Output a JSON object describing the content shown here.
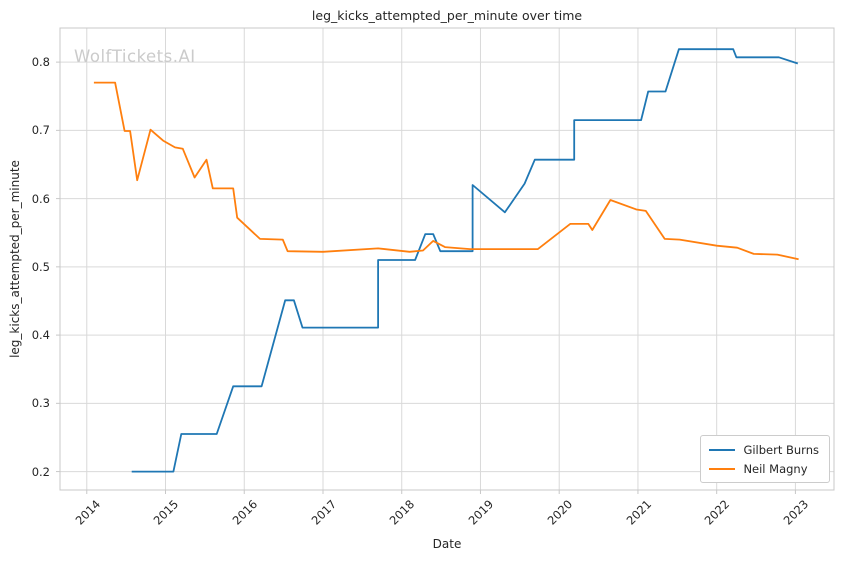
{
  "figure": {
    "title": "leg_kicks_attempted_per_minute over time",
    "watermark": "WolfTickets.AI"
  },
  "colors": {
    "background": "#ffffff",
    "grid": "#d9d9d9",
    "spine": "#c8c8c8",
    "text": "#262626",
    "watermark": "#cbcbcb",
    "series_blue": "#1f77b4",
    "series_orange": "#ff7f0e"
  },
  "chart_data": {
    "type": "line",
    "title": "leg_kicks_attempted_per_minute over time",
    "xlabel": "Date",
    "ylabel": "leg_kicks_attempted_per_minute",
    "xlim": [
      2013.66,
      2023.49
    ],
    "ylim": [
      0.173,
      0.85
    ],
    "x_ticks": [
      2014,
      2015,
      2016,
      2017,
      2018,
      2019,
      2020,
      2021,
      2022,
      2023
    ],
    "x_tick_labels": [
      "2014",
      "2015",
      "2016",
      "2017",
      "2018",
      "2019",
      "2020",
      "2021",
      "2022",
      "2023"
    ],
    "y_ticks": [
      0.2,
      0.3,
      0.4,
      0.5,
      0.6,
      0.7,
      0.8
    ],
    "y_tick_labels": [
      "0.2",
      "0.3",
      "0.4",
      "0.5",
      "0.6",
      "0.7",
      "0.8"
    ],
    "grid": true,
    "legend_position": "lower right",
    "series": [
      {
        "name": "Gilbert Burns",
        "color": "#1f77b4",
        "points": [
          [
            2014.57,
            0.2
          ],
          [
            2015.1,
            0.2
          ],
          [
            2015.2,
            0.255
          ],
          [
            2015.65,
            0.255
          ],
          [
            2015.86,
            0.325
          ],
          [
            2016.22,
            0.325
          ],
          [
            2016.52,
            0.451
          ],
          [
            2016.63,
            0.451
          ],
          [
            2016.74,
            0.411
          ],
          [
            2017.7,
            0.411
          ],
          [
            2017.7,
            0.51
          ],
          [
            2018.17,
            0.51
          ],
          [
            2018.3,
            0.548
          ],
          [
            2018.4,
            0.548
          ],
          [
            2018.49,
            0.523
          ],
          [
            2018.9,
            0.523
          ],
          [
            2018.9,
            0.62
          ],
          [
            2019.31,
            0.58
          ],
          [
            2019.56,
            0.622
          ],
          [
            2019.69,
            0.657
          ],
          [
            2020.19,
            0.657
          ],
          [
            2020.19,
            0.715
          ],
          [
            2021.04,
            0.715
          ],
          [
            2021.13,
            0.757
          ],
          [
            2021.35,
            0.757
          ],
          [
            2021.52,
            0.819
          ],
          [
            2022.21,
            0.819
          ],
          [
            2022.25,
            0.807
          ],
          [
            2022.79,
            0.807
          ],
          [
            2023.03,
            0.798
          ]
        ]
      },
      {
        "name": "Neil Magny",
        "color": "#ff7f0e",
        "points": [
          [
            2014.09,
            0.77
          ],
          [
            2014.36,
            0.77
          ],
          [
            2014.48,
            0.699
          ],
          [
            2014.55,
            0.699
          ],
          [
            2014.64,
            0.627
          ],
          [
            2014.81,
            0.701
          ],
          [
            2014.97,
            0.685
          ],
          [
            2015.12,
            0.675
          ],
          [
            2015.22,
            0.673
          ],
          [
            2015.37,
            0.631
          ],
          [
            2015.52,
            0.657
          ],
          [
            2015.6,
            0.615
          ],
          [
            2015.86,
            0.615
          ],
          [
            2015.91,
            0.572
          ],
          [
            2016.2,
            0.541
          ],
          [
            2016.49,
            0.54
          ],
          [
            2016.55,
            0.523
          ],
          [
            2017.0,
            0.522
          ],
          [
            2017.7,
            0.527
          ],
          [
            2018.1,
            0.522
          ],
          [
            2018.27,
            0.524
          ],
          [
            2018.4,
            0.538
          ],
          [
            2018.55,
            0.529
          ],
          [
            2018.87,
            0.526
          ],
          [
            2019.73,
            0.526
          ],
          [
            2020.14,
            0.563
          ],
          [
            2020.37,
            0.563
          ],
          [
            2020.42,
            0.554
          ],
          [
            2020.65,
            0.598
          ],
          [
            2020.98,
            0.584
          ],
          [
            2021.1,
            0.582
          ],
          [
            2021.34,
            0.541
          ],
          [
            2021.53,
            0.54
          ],
          [
            2022.0,
            0.531
          ],
          [
            2022.26,
            0.528
          ],
          [
            2022.47,
            0.519
          ],
          [
            2022.77,
            0.518
          ],
          [
            2023.04,
            0.511
          ]
        ]
      }
    ]
  }
}
